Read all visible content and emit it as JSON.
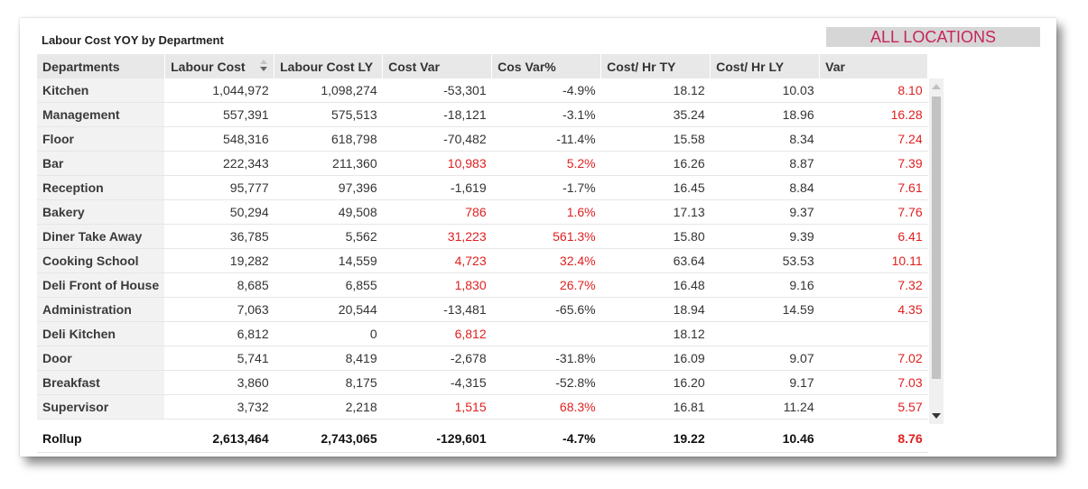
{
  "title": "Labour Cost YOY by Department",
  "location_button": "ALL LOCATIONS",
  "columns": [
    "Departments",
    "Labour Cost",
    "Labour Cost LY",
    "Cost Var",
    "Cos Var%",
    "Cost/ Hr TY",
    "Cost/ Hr LY",
    "Var"
  ],
  "rows": [
    {
      "dept": "Kitchen",
      "labour": "1,044,972",
      "labour_ly": "1,098,274",
      "cost_var": "-53,301",
      "cos_var_pct": "-4.9%",
      "hr_ty": "18.12",
      "hr_ly": "10.03",
      "var": "8.10",
      "positive": false
    },
    {
      "dept": "Management",
      "labour": "557,391",
      "labour_ly": "575,513",
      "cost_var": "-18,121",
      "cos_var_pct": "-3.1%",
      "hr_ty": "35.24",
      "hr_ly": "18.96",
      "var": "16.28",
      "positive": false
    },
    {
      "dept": "Floor",
      "labour": "548,316",
      "labour_ly": "618,798",
      "cost_var": "-70,482",
      "cos_var_pct": "-11.4%",
      "hr_ty": "15.58",
      "hr_ly": "8.34",
      "var": "7.24",
      "positive": false
    },
    {
      "dept": "Bar",
      "labour": "222,343",
      "labour_ly": "211,360",
      "cost_var": "10,983",
      "cos_var_pct": "5.2%",
      "hr_ty": "16.26",
      "hr_ly": "8.87",
      "var": "7.39",
      "positive": true
    },
    {
      "dept": "Reception",
      "labour": "95,777",
      "labour_ly": "97,396",
      "cost_var": "-1,619",
      "cos_var_pct": "-1.7%",
      "hr_ty": "16.45",
      "hr_ly": "8.84",
      "var": "7.61",
      "positive": false
    },
    {
      "dept": "Bakery",
      "labour": "50,294",
      "labour_ly": "49,508",
      "cost_var": "786",
      "cos_var_pct": "1.6%",
      "hr_ty": "17.13",
      "hr_ly": "9.37",
      "var": "7.76",
      "positive": true
    },
    {
      "dept": "Diner Take Away",
      "labour": "36,785",
      "labour_ly": "5,562",
      "cost_var": "31,223",
      "cos_var_pct": "561.3%",
      "hr_ty": "15.80",
      "hr_ly": "9.39",
      "var": "6.41",
      "positive": true
    },
    {
      "dept": "Cooking School",
      "labour": "19,282",
      "labour_ly": "14,559",
      "cost_var": "4,723",
      "cos_var_pct": "32.4%",
      "hr_ty": "63.64",
      "hr_ly": "53.53",
      "var": "10.11",
      "positive": true
    },
    {
      "dept": "Deli Front of House",
      "labour": "8,685",
      "labour_ly": "6,855",
      "cost_var": "1,830",
      "cos_var_pct": "26.7%",
      "hr_ty": "16.48",
      "hr_ly": "9.16",
      "var": "7.32",
      "positive": true
    },
    {
      "dept": "Administration",
      "labour": "7,063",
      "labour_ly": "20,544",
      "cost_var": "-13,481",
      "cos_var_pct": "-65.6%",
      "hr_ty": "18.94",
      "hr_ly": "14.59",
      "var": "4.35",
      "positive": false
    },
    {
      "dept": "Deli Kitchen",
      "labour": "6,812",
      "labour_ly": "0",
      "cost_var": "6,812",
      "cos_var_pct": "",
      "hr_ty": "18.12",
      "hr_ly": "",
      "var": "",
      "positive": true
    },
    {
      "dept": "Door",
      "labour": "5,741",
      "labour_ly": "8,419",
      "cost_var": "-2,678",
      "cos_var_pct": "-31.8%",
      "hr_ty": "16.09",
      "hr_ly": "9.07",
      "var": "7.02",
      "positive": false
    },
    {
      "dept": "Breakfast",
      "labour": "3,860",
      "labour_ly": "8,175",
      "cost_var": "-4,315",
      "cos_var_pct": "-52.8%",
      "hr_ty": "16.20",
      "hr_ly": "9.17",
      "var": "7.03",
      "positive": false
    },
    {
      "dept": "Supervisor",
      "labour": "3,732",
      "labour_ly": "2,218",
      "cost_var": "1,515",
      "cos_var_pct": "68.3%",
      "hr_ty": "16.81",
      "hr_ly": "11.24",
      "var": "5.57",
      "positive": true
    }
  ],
  "rollup": {
    "dept": "Rollup",
    "labour": "2,613,464",
    "labour_ly": "2,743,065",
    "cost_var": "-129,601",
    "cos_var_pct": "-4.7%",
    "hr_ty": "19.22",
    "hr_ly": "10.46",
    "var": "8.76"
  },
  "colors": {
    "accent": "#c7245e",
    "positive_red": "#e02020",
    "header_bg": "#e8e8e8",
    "dept_bg": "#f2f2f2"
  },
  "icons": {
    "sort": "sort-desc-icon",
    "scroll_up": "scroll-up-icon",
    "scroll_down": "scroll-down-icon"
  }
}
